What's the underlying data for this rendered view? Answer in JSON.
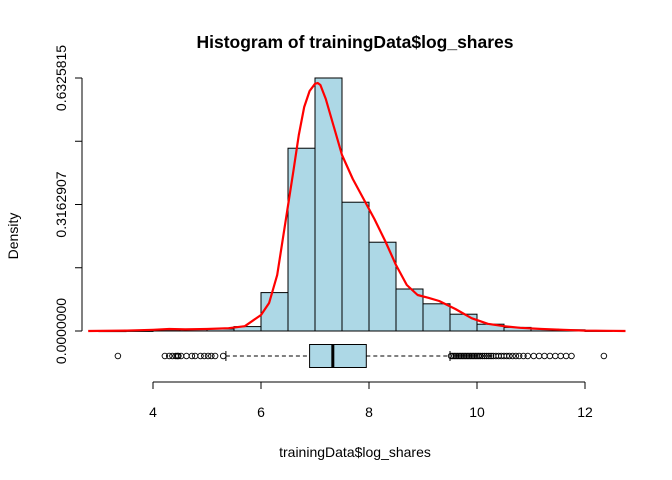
{
  "chart_data": {
    "type": "bar",
    "title": "Histogram of trainingData$log_shares",
    "xlabel": "trainingData$log_shares",
    "ylabel": "Density",
    "xlim": [
      2.8,
      12.75
    ],
    "ylim": [
      0,
      0.6325815
    ],
    "xticks": [
      4,
      6,
      8,
      10,
      12
    ],
    "xtick_labels": [
      "4",
      "6",
      "8",
      "10",
      "12"
    ],
    "yticks": [
      0.0,
      0.3162907,
      0.6325815
    ],
    "ytick_labels": [
      "0.0000000",
      "0.3162907",
      "0.6325815"
    ],
    "histogram": {
      "fill": "#ADD8E6",
      "bins": [
        {
          "x0": 3.0,
          "x1": 3.5,
          "density": 0.0
        },
        {
          "x0": 3.5,
          "x1": 4.0,
          "density": 0.0005
        },
        {
          "x0": 4.0,
          "x1": 4.5,
          "density": 0.003
        },
        {
          "x0": 4.5,
          "x1": 5.0,
          "density": 0.004
        },
        {
          "x0": 5.0,
          "x1": 5.5,
          "density": 0.005
        },
        {
          "x0": 5.5,
          "x1": 6.0,
          "density": 0.011
        },
        {
          "x0": 6.0,
          "x1": 6.5,
          "density": 0.096
        },
        {
          "x0": 6.5,
          "x1": 7.0,
          "density": 0.457
        },
        {
          "x0": 7.0,
          "x1": 7.5,
          "density": 0.6326
        },
        {
          "x0": 7.5,
          "x1": 8.0,
          "density": 0.322
        },
        {
          "x0": 8.0,
          "x1": 8.5,
          "density": 0.222
        },
        {
          "x0": 8.5,
          "x1": 9.0,
          "density": 0.105
        },
        {
          "x0": 9.0,
          "x1": 9.5,
          "density": 0.068
        },
        {
          "x0": 9.5,
          "x1": 10.0,
          "density": 0.042
        },
        {
          "x0": 10.0,
          "x1": 10.5,
          "density": 0.017
        },
        {
          "x0": 10.5,
          "x1": 11.0,
          "density": 0.009
        },
        {
          "x0": 11.0,
          "x1": 11.5,
          "density": 0.005
        },
        {
          "x0": 11.5,
          "x1": 12.0,
          "density": 0.003
        },
        {
          "x0": 12.0,
          "x1": 12.5,
          "density": 0.0005
        }
      ]
    },
    "density_curve": {
      "color": "#FF0000",
      "x": [
        2.8,
        3.5,
        4.0,
        4.3,
        4.6,
        5.0,
        5.4,
        5.7,
        6.0,
        6.15,
        6.3,
        6.45,
        6.6,
        6.7,
        6.8,
        6.9,
        7.0,
        7.05,
        7.1,
        7.2,
        7.35,
        7.5,
        7.7,
        7.9,
        8.1,
        8.3,
        8.5,
        8.7,
        8.9,
        9.1,
        9.3,
        9.6,
        9.9,
        10.2,
        10.5,
        10.8,
        11.2,
        11.6,
        12.0,
        12.4,
        12.75
      ],
      "y": [
        0.0,
        0.001,
        0.003,
        0.005,
        0.004,
        0.005,
        0.007,
        0.012,
        0.04,
        0.07,
        0.14,
        0.27,
        0.4,
        0.49,
        0.56,
        0.6,
        0.618,
        0.62,
        0.615,
        0.58,
        0.51,
        0.44,
        0.38,
        0.33,
        0.28,
        0.225,
        0.165,
        0.115,
        0.09,
        0.083,
        0.075,
        0.055,
        0.032,
        0.018,
        0.012,
        0.008,
        0.005,
        0.003,
        0.001,
        0.0005,
        0.0
      ]
    },
    "boxplot": {
      "fill": "#ADD8E6",
      "q1": 6.9,
      "median": 7.33,
      "q3": 7.95,
      "whisker_low": 5.35,
      "whisker_high": 9.5,
      "outliers": [
        3.35,
        4.22,
        4.3,
        4.36,
        4.42,
        4.45,
        4.47,
        4.52,
        4.62,
        4.72,
        4.78,
        4.88,
        4.95,
        5.02,
        5.08,
        5.15,
        5.3,
        9.52,
        9.55,
        9.58,
        9.61,
        9.64,
        9.67,
        9.7,
        9.73,
        9.76,
        9.79,
        9.82,
        9.85,
        9.88,
        9.91,
        9.94,
        9.97,
        10.0,
        10.03,
        10.06,
        10.1,
        10.14,
        10.18,
        10.22,
        10.26,
        10.3,
        10.35,
        10.4,
        10.45,
        10.5,
        10.55,
        10.6,
        10.66,
        10.72,
        10.78,
        10.86,
        10.94,
        11.05,
        11.15,
        11.25,
        11.35,
        11.45,
        11.55,
        11.65,
        11.75,
        12.35
      ]
    }
  }
}
